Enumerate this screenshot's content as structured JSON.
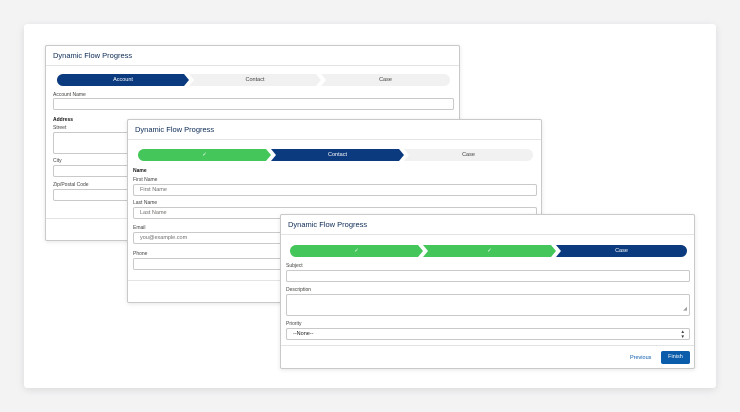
{
  "colors": {
    "current": "#0b3a7e",
    "complete": "#45c65a",
    "incomplete": "#f1f1f1",
    "brand": "#0b5cab"
  },
  "card1": {
    "title": "Dynamic Flow Progress",
    "steps": [
      "Account",
      "Contact",
      "Case"
    ],
    "account_name_label": "Account Name",
    "address_heading": "Address",
    "street_label": "Street",
    "city_label": "City",
    "zip_label": "Zip/Postal Code"
  },
  "card2": {
    "title": "Dynamic Flow Progress",
    "steps": [
      "✓",
      "Contact",
      "Case"
    ],
    "name_heading": "Name",
    "first_name_label": "First Name",
    "first_name_placeholder": "First Name",
    "last_name_label": "Last Name",
    "last_name_placeholder": "Last Name",
    "email_label": "Email",
    "email_placeholder": "you@example.com",
    "phone_label": "Phone"
  },
  "card3": {
    "title": "Dynamic Flow Progress",
    "steps": [
      "✓",
      "✓",
      "Case"
    ],
    "subject_label": "Subject",
    "description_label": "Description",
    "priority_label": "Priority",
    "priority_value": "--None--",
    "previous_label": "Previous",
    "finish_label": "Finish"
  }
}
